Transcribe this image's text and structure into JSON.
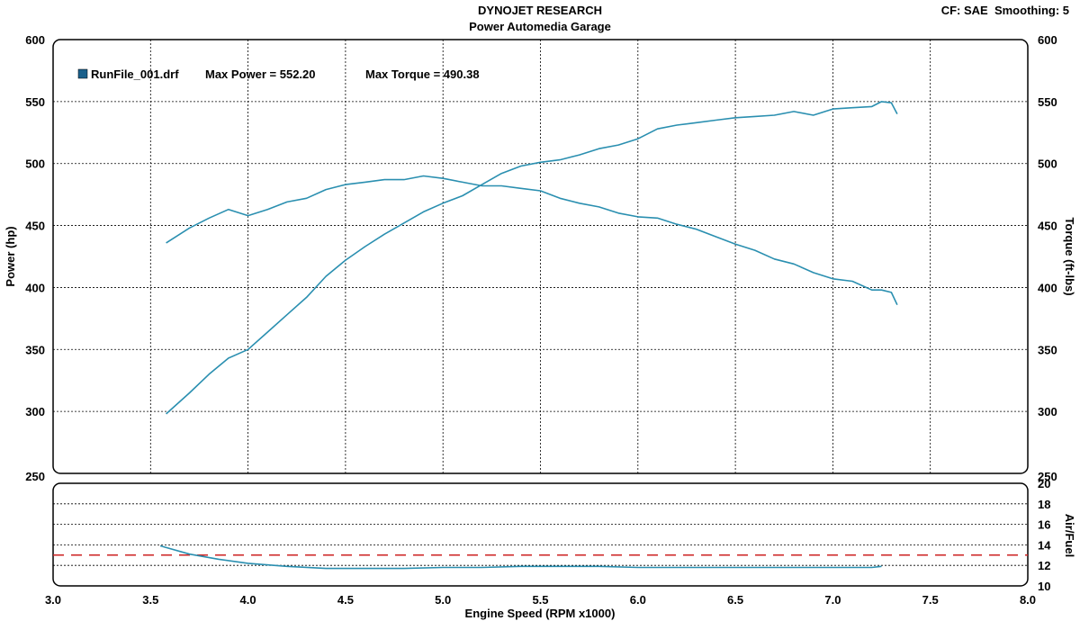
{
  "header": {
    "title": "DYNOJET RESEARCH",
    "subtitle": "Power Automedia Garage",
    "cf_label": "CF: SAE",
    "smoothing_label": "Smoothing: 5"
  },
  "colors": {
    "trace": "#2a8fb0",
    "afr_reference": "#cc2222",
    "legend_box": "#1a5f8a"
  },
  "chart_data": [
    {
      "type": "line",
      "panel": "main",
      "xlabel": "Engine Speed (RPM x1000)",
      "ylabel": "Power (hp)",
      "y2label": "Torque (ft-lbs)",
      "xlim": [
        3.0,
        8.0
      ],
      "ylim": [
        250,
        600
      ],
      "y2lim": [
        250,
        600
      ],
      "x_ticks": [
        "3.0",
        "3.5",
        "4.0",
        "4.5",
        "5.0",
        "5.5",
        "6.0",
        "6.5",
        "7.0",
        "7.5",
        "8.0"
      ],
      "y_ticks": [
        "250",
        "300",
        "350",
        "400",
        "450",
        "500",
        "550",
        "600"
      ],
      "grid": true,
      "legend": {
        "file": "RunFile_001.drf",
        "max_power_label": "Max Power = 552.20",
        "max_torque_label": "Max Torque = 490.38",
        "placement": "top-left"
      },
      "series": [
        {
          "key": "power",
          "x": [
            3.58,
            3.7,
            3.8,
            3.9,
            4.0,
            4.1,
            4.2,
            4.3,
            4.4,
            4.5,
            4.6,
            4.7,
            4.8,
            4.9,
            5.0,
            5.1,
            5.2,
            5.3,
            5.4,
            5.5,
            5.6,
            5.7,
            5.8,
            5.9,
            6.0,
            6.1,
            6.2,
            6.3,
            6.4,
            6.5,
            6.6,
            6.7,
            6.8,
            6.9,
            7.0,
            7.1,
            7.2,
            7.25,
            7.3,
            7.33
          ],
          "y": [
            298,
            315,
            330,
            343,
            350,
            364,
            378,
            392,
            409,
            422,
            433,
            443,
            452,
            461,
            468,
            474,
            483,
            492,
            498,
            501,
            503,
            507,
            512,
            515,
            520,
            528,
            531,
            533,
            535,
            537,
            538,
            539,
            542,
            539,
            544,
            545,
            546,
            550,
            549,
            540
          ]
        },
        {
          "key": "torque",
          "x": [
            3.58,
            3.7,
            3.8,
            3.9,
            4.0,
            4.1,
            4.2,
            4.3,
            4.4,
            4.5,
            4.6,
            4.7,
            4.8,
            4.9,
            5.0,
            5.1,
            5.2,
            5.3,
            5.4,
            5.5,
            5.6,
            5.7,
            5.8,
            5.9,
            6.0,
            6.1,
            6.2,
            6.3,
            6.4,
            6.5,
            6.6,
            6.7,
            6.8,
            6.9,
            7.0,
            7.1,
            7.2,
            7.25,
            7.3,
            7.33
          ],
          "y": [
            436,
            448,
            456,
            463,
            458,
            463,
            469,
            472,
            479,
            483,
            485,
            487,
            487,
            490,
            488,
            485,
            482,
            482,
            480,
            478,
            472,
            468,
            465,
            460,
            457,
            456,
            451,
            447,
            441,
            435,
            430,
            423,
            419,
            412,
            407,
            405,
            398,
            398,
            396,
            386
          ]
        }
      ]
    },
    {
      "type": "line",
      "panel": "air_fuel",
      "ylabel": "Air/Fuel",
      "xlim": [
        3.0,
        8.0
      ],
      "ylim": [
        10,
        20
      ],
      "y_ticks": [
        "10",
        "12",
        "14",
        "16",
        "18",
        "20"
      ],
      "reference_line": 13.0,
      "grid": true,
      "series": [
        {
          "key": "afr",
          "x": [
            3.55,
            3.7,
            3.85,
            4.0,
            4.2,
            4.4,
            4.6,
            4.8,
            5.0,
            5.2,
            5.4,
            5.6,
            5.8,
            6.0,
            6.2,
            6.4,
            6.6,
            6.8,
            7.0,
            7.1,
            7.2,
            7.25
          ],
          "y": [
            13.9,
            13.1,
            12.6,
            12.2,
            11.9,
            11.7,
            11.7,
            11.7,
            11.8,
            11.8,
            11.9,
            11.9,
            11.9,
            11.8,
            11.8,
            11.8,
            11.8,
            11.8,
            11.8,
            11.8,
            11.8,
            11.9
          ]
        }
      ]
    }
  ]
}
